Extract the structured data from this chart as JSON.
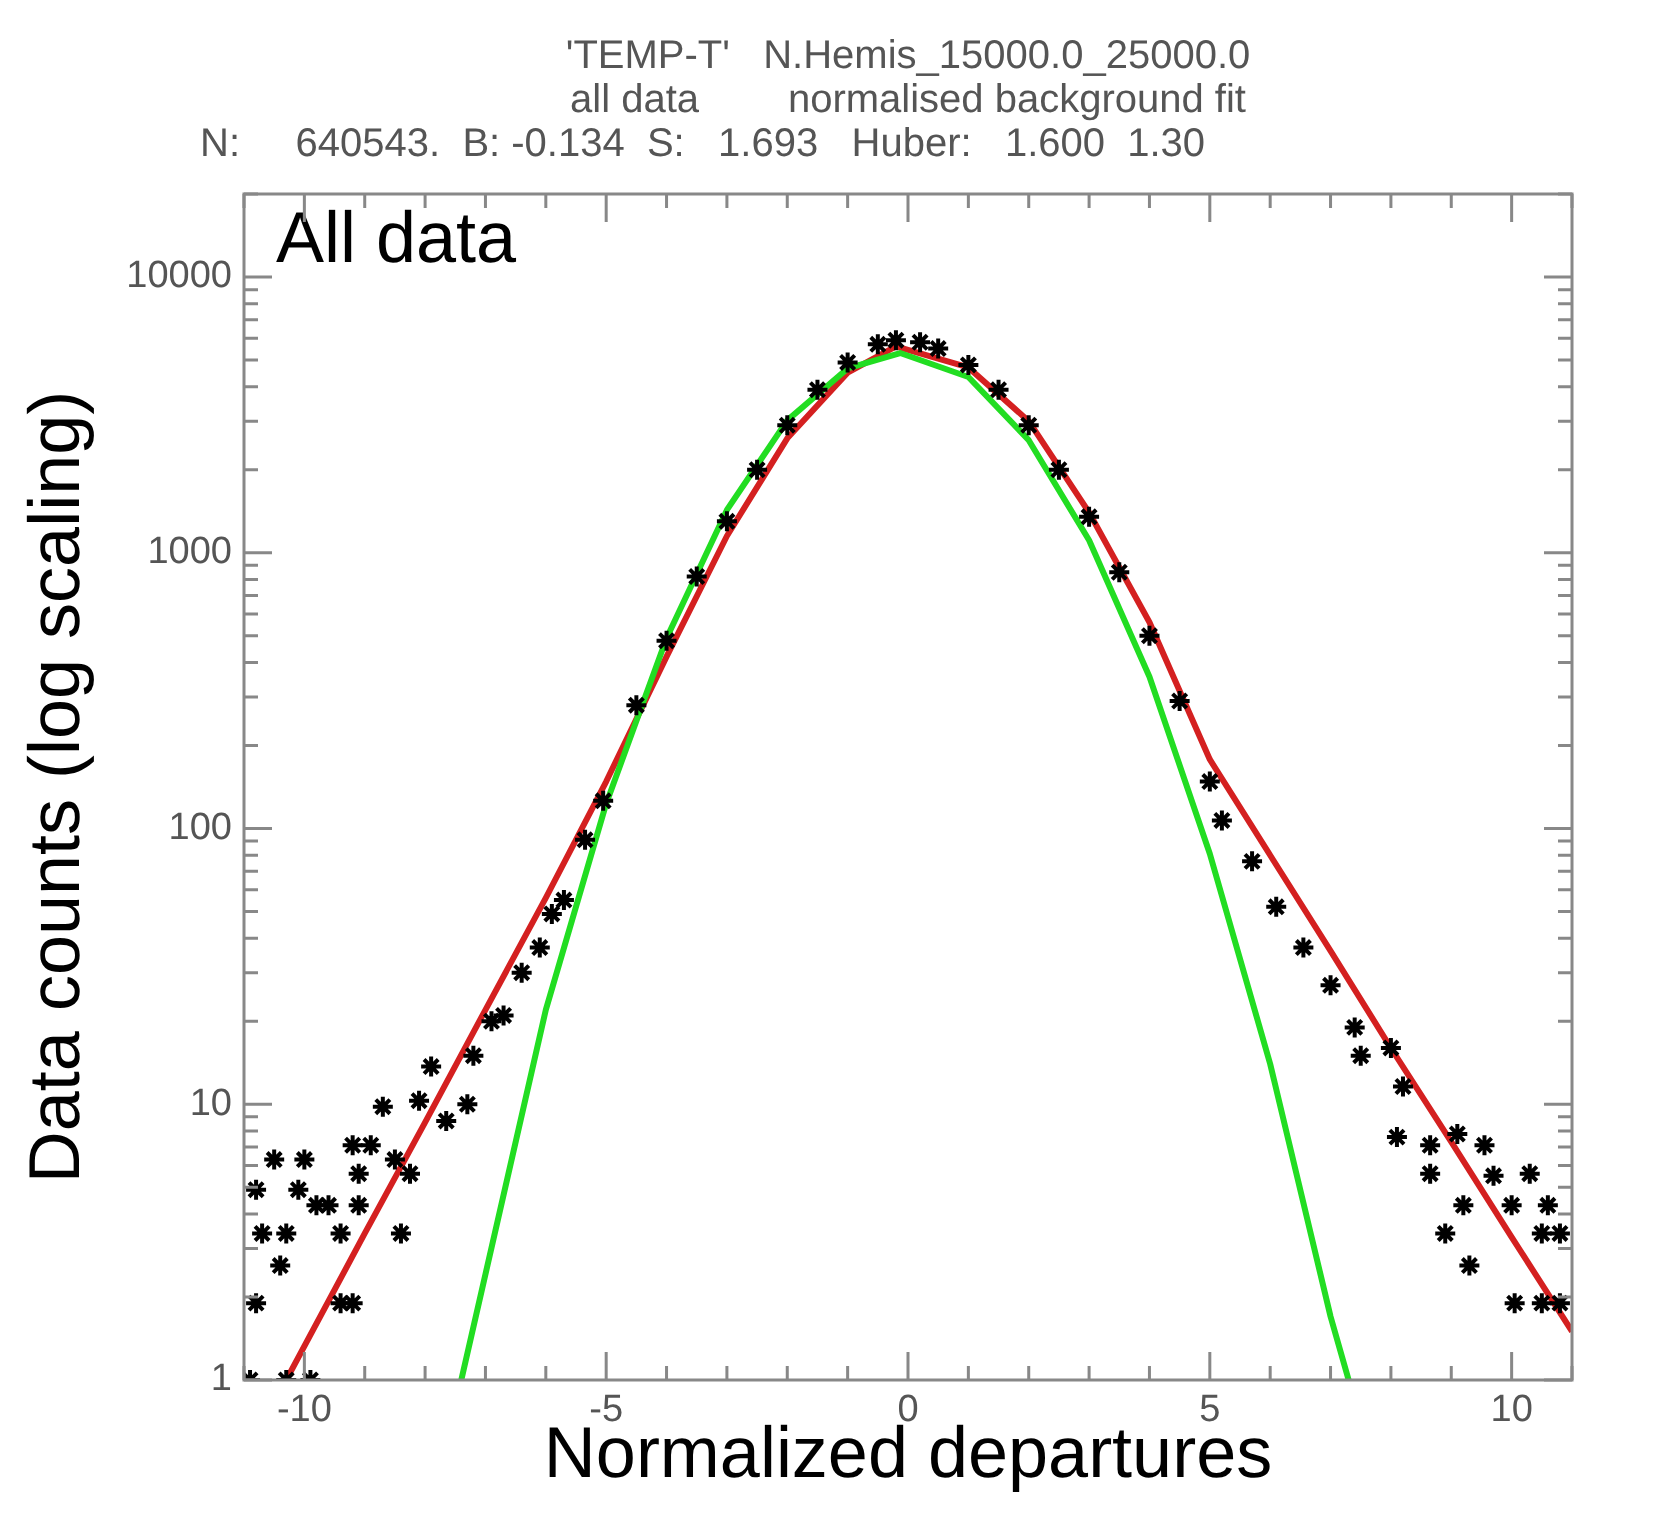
{
  "chart_data": {
    "type": "scatter",
    "title": "'TEMP-T'   N.Hemis_15000.0_25000.0",
    "subtitle": "all data        normalised background fit",
    "annotations": [
      "N:     640543.  B: -0.134  S:   1.693   Huber:   1.600  1.30",
      "All data"
    ],
    "xlabel": "Normalized departures",
    "ylabel": "Data counts (log scaling)",
    "log": "y",
    "grid": false,
    "legend": false,
    "xlim": [
      -11,
      11
    ],
    "xticks": [
      {
        "value": -11,
        "label": null
      },
      -10,
      {
        "value": -9,
        "label": null
      },
      {
        "value": -8,
        "label": null
      },
      {
        "value": -7,
        "label": null
      },
      {
        "value": -6,
        "label": null
      },
      -5,
      {
        "value": -4,
        "label": null
      },
      {
        "value": -3,
        "label": null
      },
      {
        "value": -2,
        "label": null
      },
      {
        "value": -1,
        "label": null
      },
      0,
      {
        "value": 1,
        "label": null
      },
      {
        "value": 2,
        "label": null
      },
      {
        "value": 3,
        "label": null
      },
      {
        "value": 4,
        "label": null
      },
      5,
      {
        "value": 6,
        "label": null
      },
      {
        "value": 7,
        "label": null
      },
      {
        "value": 8,
        "label": null
      },
      {
        "value": 9,
        "label": null
      },
      10,
      {
        "value": 11,
        "label": null
      }
    ],
    "ylim": [
      1,
      20000
    ],
    "yticks": [
      1,
      {
        "value": 2,
        "label": null
      },
      {
        "value": 3,
        "label": null
      },
      {
        "value": 4,
        "label": null
      },
      {
        "value": 5,
        "label": null
      },
      {
        "value": 6,
        "label": null
      },
      {
        "value": 7,
        "label": null
      },
      {
        "value": 8,
        "label": null
      },
      {
        "value": 9,
        "label": null
      },
      10,
      {
        "value": 20,
        "label": null
      },
      {
        "value": 30,
        "label": null
      },
      {
        "value": 40,
        "label": null
      },
      {
        "value": 50,
        "label": null
      },
      {
        "value": 60,
        "label": null
      },
      {
        "value": 70,
        "label": null
      },
      {
        "value": 80,
        "label": null
      },
      {
        "value": 90,
        "label": null
      },
      100,
      {
        "value": 200,
        "label": null
      },
      {
        "value": 300,
        "label": null
      },
      {
        "value": 400,
        "label": null
      },
      {
        "value": 500,
        "label": null
      },
      {
        "value": 600,
        "label": null
      },
      {
        "value": 700,
        "label": null
      },
      {
        "value": 800,
        "label": null
      },
      {
        "value": 900,
        "label": null
      },
      1000,
      {
        "value": 2000,
        "label": null
      },
      {
        "value": 3000,
        "label": null
      },
      {
        "value": 4000,
        "label": null
      },
      {
        "value": 5000,
        "label": null
      },
      {
        "value": 6000,
        "label": null
      },
      {
        "value": 7000,
        "label": null
      },
      {
        "value": 8000,
        "label": null
      },
      {
        "value": 9000,
        "label": null
      },
      10000,
      {
        "value": 20000,
        "label": null
      }
    ],
    "series": [
      {
        "color": "#000000",
        "marker": "cross",
        "x": [
          -10.9,
          -10.3,
          -9.9,
          -10.8,
          -10.5,
          -10.0,
          -10.8,
          -10.1,
          -10.7,
          -10.3,
          -10.4,
          -9.8,
          -9.6,
          -9.4,
          -9.4,
          -9.2,
          -9.1,
          -9.1,
          -9.2,
          -8.9,
          -8.7,
          -8.5,
          -8.4,
          -8.25,
          -8.1,
          -7.9,
          -7.65,
          -7.3,
          -7.2,
          -6.9,
          -6.7,
          -6.4,
          -6.1,
          -5.9,
          -5.7,
          -5.35,
          -5.05,
          -4.5,
          -4.0,
          -3.5,
          -3.0,
          -2.5,
          -2.0,
          -1.5,
          -1.0,
          -0.5,
          -0.2,
          0.2,
          0.5,
          1.0,
          1.5,
          2.0,
          2.5,
          3.0,
          3.5,
          4.0,
          4.5,
          5.0,
          5.2,
          5.7,
          6.1,
          6.55,
          7.0,
          7.4,
          7.5,
          8.0,
          8.2,
          8.1,
          8.65,
          8.65,
          9.1,
          9.55,
          9.7,
          10.3,
          9.2,
          8.9,
          9.3,
          10.0,
          10.6,
          10.5,
          10.8,
          10.05,
          10.5,
          10.8
        ],
        "values": [
          1,
          1,
          1,
          1.9,
          6.3,
          6.3,
          4.9,
          4.9,
          3.4,
          3.4,
          2.6,
          4.3,
          4.3,
          3.4,
          1.9,
          1.9,
          4.3,
          5.6,
          7.1,
          7.1,
          9.8,
          6.3,
          3.4,
          5.6,
          10.3,
          13.7,
          8.7,
          10,
          15,
          20,
          21,
          30,
          37,
          49,
          55,
          91,
          126,
          280,
          480,
          820,
          1300,
          2000,
          2900,
          3900,
          4900,
          5700,
          5900,
          5800,
          5500,
          4800,
          3900,
          2900,
          2000,
          1350,
          850,
          500,
          290,
          148,
          107,
          76,
          52,
          37,
          27,
          19,
          15,
          16,
          11.6,
          7.6,
          7.1,
          5.6,
          7.8,
          7.1,
          5.5,
          5.6,
          4.3,
          3.4,
          2.6,
          4.3,
          4.3,
          3.4,
          3.4,
          1.9,
          1.9,
          1.9
        ]
      },
      {
        "type": "line",
        "color": "#22dd22",
        "marker": "none",
        "x": [
          -7.4,
          -6,
          -5,
          -4,
          -3,
          -2,
          -1,
          -0.13,
          1,
          2,
          3,
          4,
          5,
          6,
          7,
          7.3
        ],
        "values": [
          1,
          22,
          123,
          490,
          1430,
          3020,
          4660,
          5300,
          4340,
          2560,
          1110,
          355,
          81,
          14,
          1.7,
          1
        ]
      },
      {
        "type": "line",
        "color": "#d42020",
        "marker": "none",
        "x": [
          -10.3,
          -9,
          -8,
          -7,
          -6,
          -5,
          -4,
          -3,
          -2,
          -1,
          -0.2,
          1,
          2,
          3,
          4,
          5,
          6,
          7,
          8,
          9,
          10,
          11
        ],
        "values": [
          1,
          3.4,
          8.6,
          22,
          56,
          148,
          420,
          1150,
          2600,
          4500,
          5600,
          4700,
          3000,
          1400,
          560,
          178,
          80,
          36,
          16,
          7.3,
          3.3,
          1.5
        ]
      }
    ]
  }
}
